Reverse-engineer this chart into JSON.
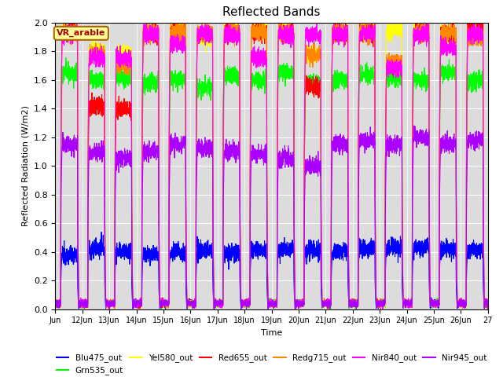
{
  "title": "Reflected Bands",
  "xlabel": "Time",
  "ylabel": "Reflected Radiation (W/m2)",
  "annotation": "VR_arable",
  "ylim": [
    0,
    2.0
  ],
  "series": {
    "Blu475_out": {
      "color": "#0000ff",
      "peak": 0.42
    },
    "Grn535_out": {
      "color": "#00ff00",
      "peak": 1.62
    },
    "Yel580_out": {
      "color": "#ffff00",
      "peak": 1.95
    },
    "Red655_out": {
      "color": "#ff0000",
      "peak": 1.92
    },
    "Redg715_out": {
      "color": "#ff8800",
      "peak": 1.93
    },
    "Nir840_out": {
      "color": "#ff00ff",
      "peak": 1.9
    },
    "Nir945_out": {
      "color": "#aa00ff",
      "peak": 1.18
    }
  },
  "legend_order": [
    "Blu475_out",
    "Grn535_out",
    "Yel580_out",
    "Red655_out",
    "Redg715_out",
    "Nir840_out",
    "Nir945_out"
  ],
  "bg_color": "#dcdcdc",
  "annotation_box_color": "#ffff99",
  "annotation_box_edge": "#aa6600",
  "annotation_text_color": "#aa0000",
  "day_start": 0.25,
  "day_end": 0.82,
  "night_base": 0.04,
  "pts_per_day": 288
}
